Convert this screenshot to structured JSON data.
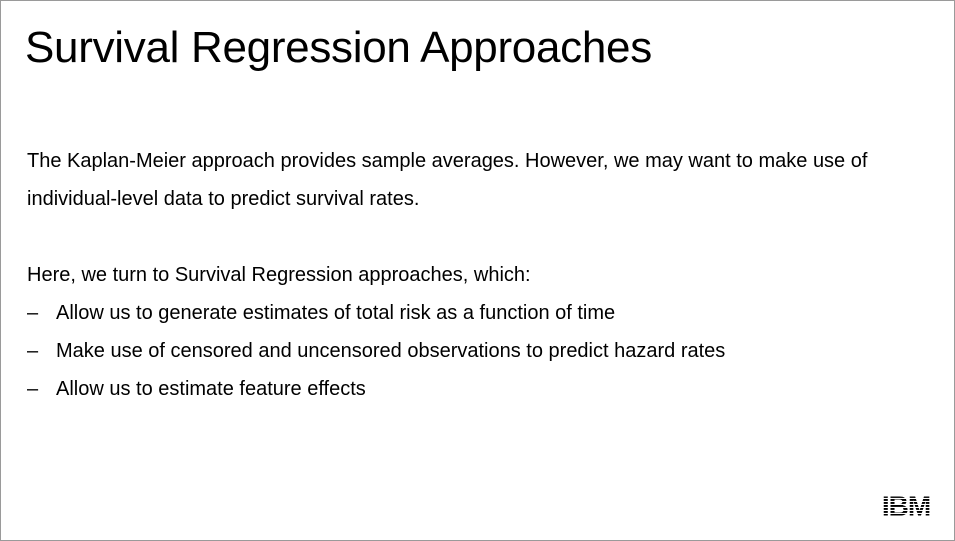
{
  "slide": {
    "title": "Survival Regression Approaches",
    "paragraph_1_line_1": "The Kaplan-Meier approach provides sample averages. However, we may want to make use of",
    "paragraph_1_line_2": "individual-level data to predict survival rates.",
    "paragraph_2": "Here, we turn to Survival Regression approaches, which:",
    "bullet_marker": "–",
    "bullets": [
      "Allow us to generate estimates of total risk as a function of time",
      "Make use of censored and uncensored observations to predict hazard rates",
      "Allow us to estimate feature effects"
    ],
    "logo_text": "IBM",
    "logo_color": "#000000"
  }
}
